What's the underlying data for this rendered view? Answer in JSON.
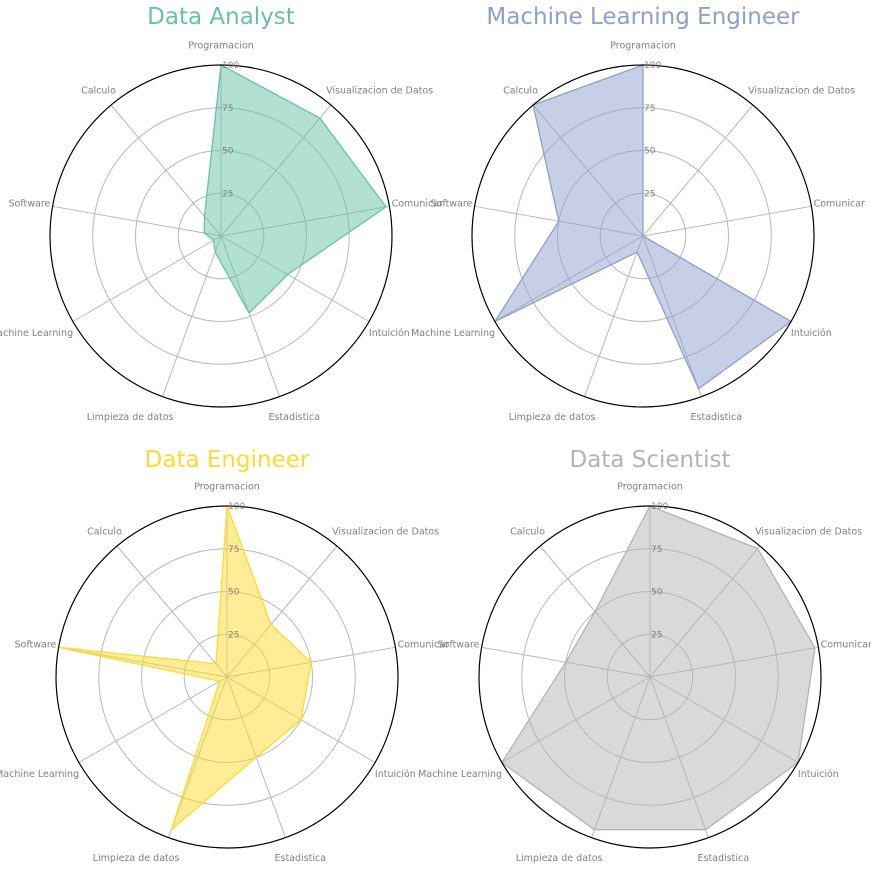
{
  "chart_data": {
    "type": "radar",
    "categories": [
      "Programacion",
      "Visualizacion de  Datos",
      "Comunicar",
      "Intuición",
      "Estadistica",
      "Limpieza de datos",
      "Machine Learning",
      "Software",
      "Calculo"
    ],
    "rlim": [
      0,
      100
    ],
    "rticks": [
      "25",
      "50",
      "75",
      "100"
    ],
    "grid": true,
    "charts": [
      {
        "title": "Data Analyst",
        "color": "#66c2a5",
        "values": [
          100,
          90,
          98,
          45,
          48,
          10,
          5,
          10,
          15
        ]
      },
      {
        "title": "Machine Learning Engineer",
        "color": "#8da0cb",
        "values": [
          100,
          0,
          0,
          100,
          95,
          10,
          100,
          50,
          100
        ]
      },
      {
        "title": "Data Engineer",
        "color": "#ffd92f",
        "values": [
          100,
          40,
          50,
          50,
          50,
          95,
          5,
          100,
          10
        ]
      },
      {
        "title": "Data Scientist",
        "color": "#b3b3b3",
        "values": [
          100,
          98,
          98,
          100,
          95,
          95,
          100,
          50,
          50
        ]
      }
    ]
  }
}
